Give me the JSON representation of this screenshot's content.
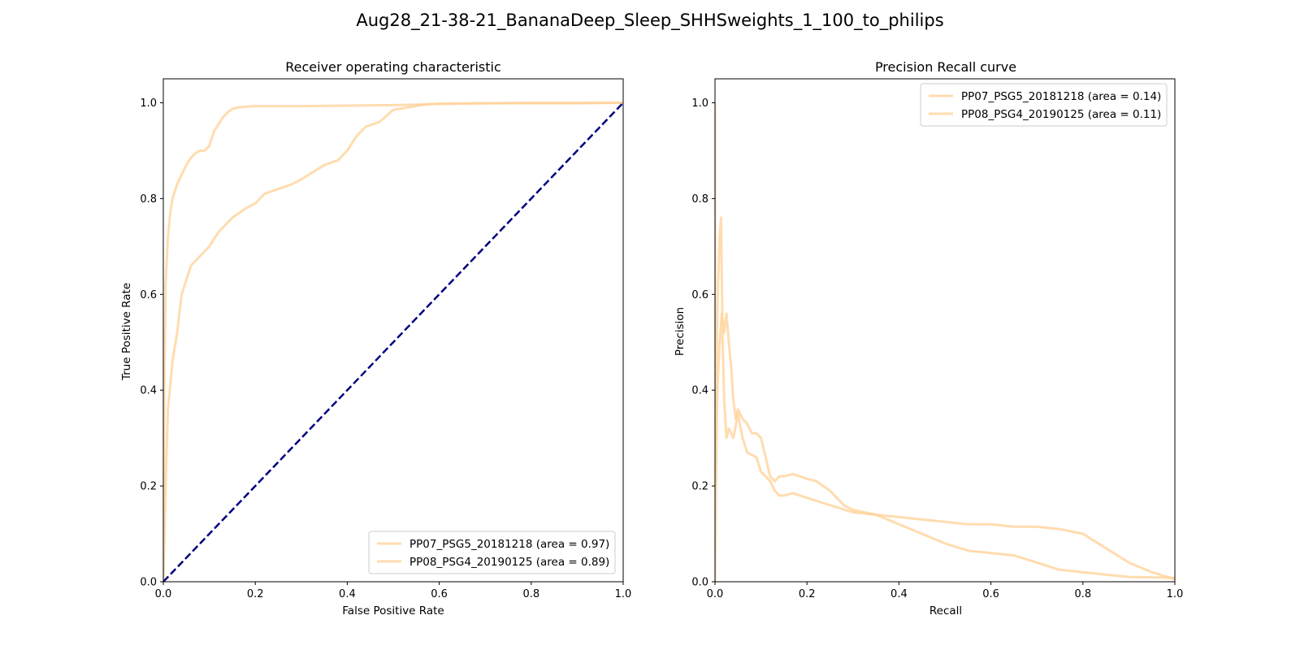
{
  "suptitle": "Aug28_21-38-21_BananaDeep_Sleep_SHHSweights_1_100_to_philips",
  "colors": {
    "curve": "#ffd39b",
    "diagonal": "#000080",
    "axis": "#000000"
  },
  "chart_data": [
    {
      "type": "line",
      "title": "Receiver operating characteristic",
      "xlabel": "False Positive Rate",
      "ylabel": "True Positive Rate",
      "xlim": [
        0.0,
        1.0
      ],
      "ylim": [
        0.0,
        1.05
      ],
      "xticks": [
        "0.0",
        "0.2",
        "0.4",
        "0.6",
        "0.8",
        "1.0"
      ],
      "yticks": [
        "0.0",
        "0.2",
        "0.4",
        "0.6",
        "0.8",
        "1.0"
      ],
      "grid": false,
      "legend_position": "lower-right",
      "series": [
        {
          "name": "PP07_PSG5_20181218 (area = 0.97)",
          "style": "solid",
          "x": [
            0.0,
            0.002,
            0.005,
            0.01,
            0.015,
            0.02,
            0.03,
            0.04,
            0.05,
            0.06,
            0.07,
            0.08,
            0.09,
            0.1,
            0.11,
            0.12,
            0.13,
            0.14,
            0.15,
            0.16,
            0.18,
            0.2,
            0.25,
            0.3,
            0.4,
            0.5,
            0.55,
            0.6,
            0.7,
            0.8,
            0.9,
            1.0
          ],
          "y": [
            0.0,
            0.4,
            0.62,
            0.72,
            0.77,
            0.8,
            0.83,
            0.85,
            0.87,
            0.885,
            0.895,
            0.9,
            0.9,
            0.91,
            0.94,
            0.955,
            0.97,
            0.98,
            0.987,
            0.99,
            0.992,
            0.993,
            0.993,
            0.993,
            0.994,
            0.995,
            0.996,
            0.998,
            0.999,
            0.999,
            0.999,
            1.0
          ]
        },
        {
          "name": "PP08_PSG4_20190125 (area = 0.89)",
          "style": "solid",
          "x": [
            0.0,
            0.005,
            0.01,
            0.02,
            0.03,
            0.04,
            0.05,
            0.06,
            0.08,
            0.1,
            0.12,
            0.15,
            0.18,
            0.2,
            0.22,
            0.25,
            0.28,
            0.3,
            0.35,
            0.38,
            0.4,
            0.42,
            0.44,
            0.47,
            0.5,
            0.53,
            0.56,
            0.58,
            0.6,
            0.7,
            0.8,
            0.9,
            1.0
          ],
          "y": [
            0.0,
            0.2,
            0.36,
            0.46,
            0.52,
            0.6,
            0.63,
            0.66,
            0.68,
            0.7,
            0.73,
            0.76,
            0.78,
            0.79,
            0.81,
            0.82,
            0.83,
            0.84,
            0.87,
            0.88,
            0.9,
            0.93,
            0.95,
            0.96,
            0.985,
            0.99,
            0.995,
            0.997,
            0.998,
            0.999,
            1.0,
            1.0,
            1.0
          ]
        },
        {
          "name": "",
          "style": "dashed",
          "x": [
            0.0,
            1.0
          ],
          "y": [
            0.0,
            1.0
          ]
        }
      ]
    },
    {
      "type": "line",
      "title": "Precision Recall curve",
      "xlabel": "Recall",
      "ylabel": "Precision",
      "xlim": [
        0.0,
        1.0
      ],
      "ylim": [
        0.0,
        1.05
      ],
      "xticks": [
        "0.0",
        "0.2",
        "0.4",
        "0.6",
        "0.8",
        "1.0"
      ],
      "yticks": [
        "0.0",
        "0.2",
        "0.4",
        "0.6",
        "0.8",
        "1.0"
      ],
      "grid": false,
      "legend_position": "upper-right",
      "series": [
        {
          "name": "PP07_PSG5_20181218 (area = 0.14)",
          "style": "solid",
          "x": [
            0.0,
            0.0,
            0.003,
            0.006,
            0.01,
            0.013,
            0.016,
            0.02,
            0.025,
            0.03,
            0.035,
            0.04,
            0.045,
            0.05,
            0.06,
            0.07,
            0.08,
            0.09,
            0.1,
            0.11,
            0.12,
            0.13,
            0.14,
            0.15,
            0.17,
            0.2,
            0.22,
            0.25,
            0.28,
            0.3,
            0.35,
            0.4,
            0.45,
            0.5,
            0.55,
            0.6,
            0.65,
            0.7,
            0.75,
            0.8,
            0.85,
            0.9,
            0.95,
            1.0
          ],
          "y": [
            1.0,
            0.22,
            0.45,
            0.6,
            0.72,
            0.76,
            0.55,
            0.52,
            0.56,
            0.5,
            0.45,
            0.38,
            0.34,
            0.36,
            0.34,
            0.33,
            0.31,
            0.31,
            0.3,
            0.26,
            0.22,
            0.21,
            0.22,
            0.22,
            0.225,
            0.215,
            0.21,
            0.19,
            0.16,
            0.15,
            0.14,
            0.135,
            0.13,
            0.125,
            0.12,
            0.12,
            0.115,
            0.115,
            0.11,
            0.1,
            0.07,
            0.04,
            0.02,
            0.005
          ]
        },
        {
          "name": "PP08_PSG4_20190125 (area = 0.11)",
          "style": "solid",
          "x": [
            0.0,
            0.005,
            0.01,
            0.015,
            0.02,
            0.025,
            0.03,
            0.04,
            0.05,
            0.06,
            0.07,
            0.08,
            0.09,
            0.1,
            0.11,
            0.12,
            0.13,
            0.14,
            0.15,
            0.17,
            0.2,
            0.25,
            0.3,
            0.35,
            0.4,
            0.45,
            0.5,
            0.55,
            0.6,
            0.65,
            0.7,
            0.75,
            0.8,
            0.9,
            1.0
          ],
          "y": [
            0.0,
            0.4,
            0.5,
            0.56,
            0.38,
            0.3,
            0.32,
            0.3,
            0.35,
            0.3,
            0.27,
            0.265,
            0.26,
            0.23,
            0.22,
            0.21,
            0.19,
            0.18,
            0.18,
            0.185,
            0.175,
            0.16,
            0.145,
            0.14,
            0.12,
            0.1,
            0.08,
            0.065,
            0.06,
            0.055,
            0.04,
            0.025,
            0.02,
            0.01,
            0.008
          ]
        }
      ]
    }
  ]
}
